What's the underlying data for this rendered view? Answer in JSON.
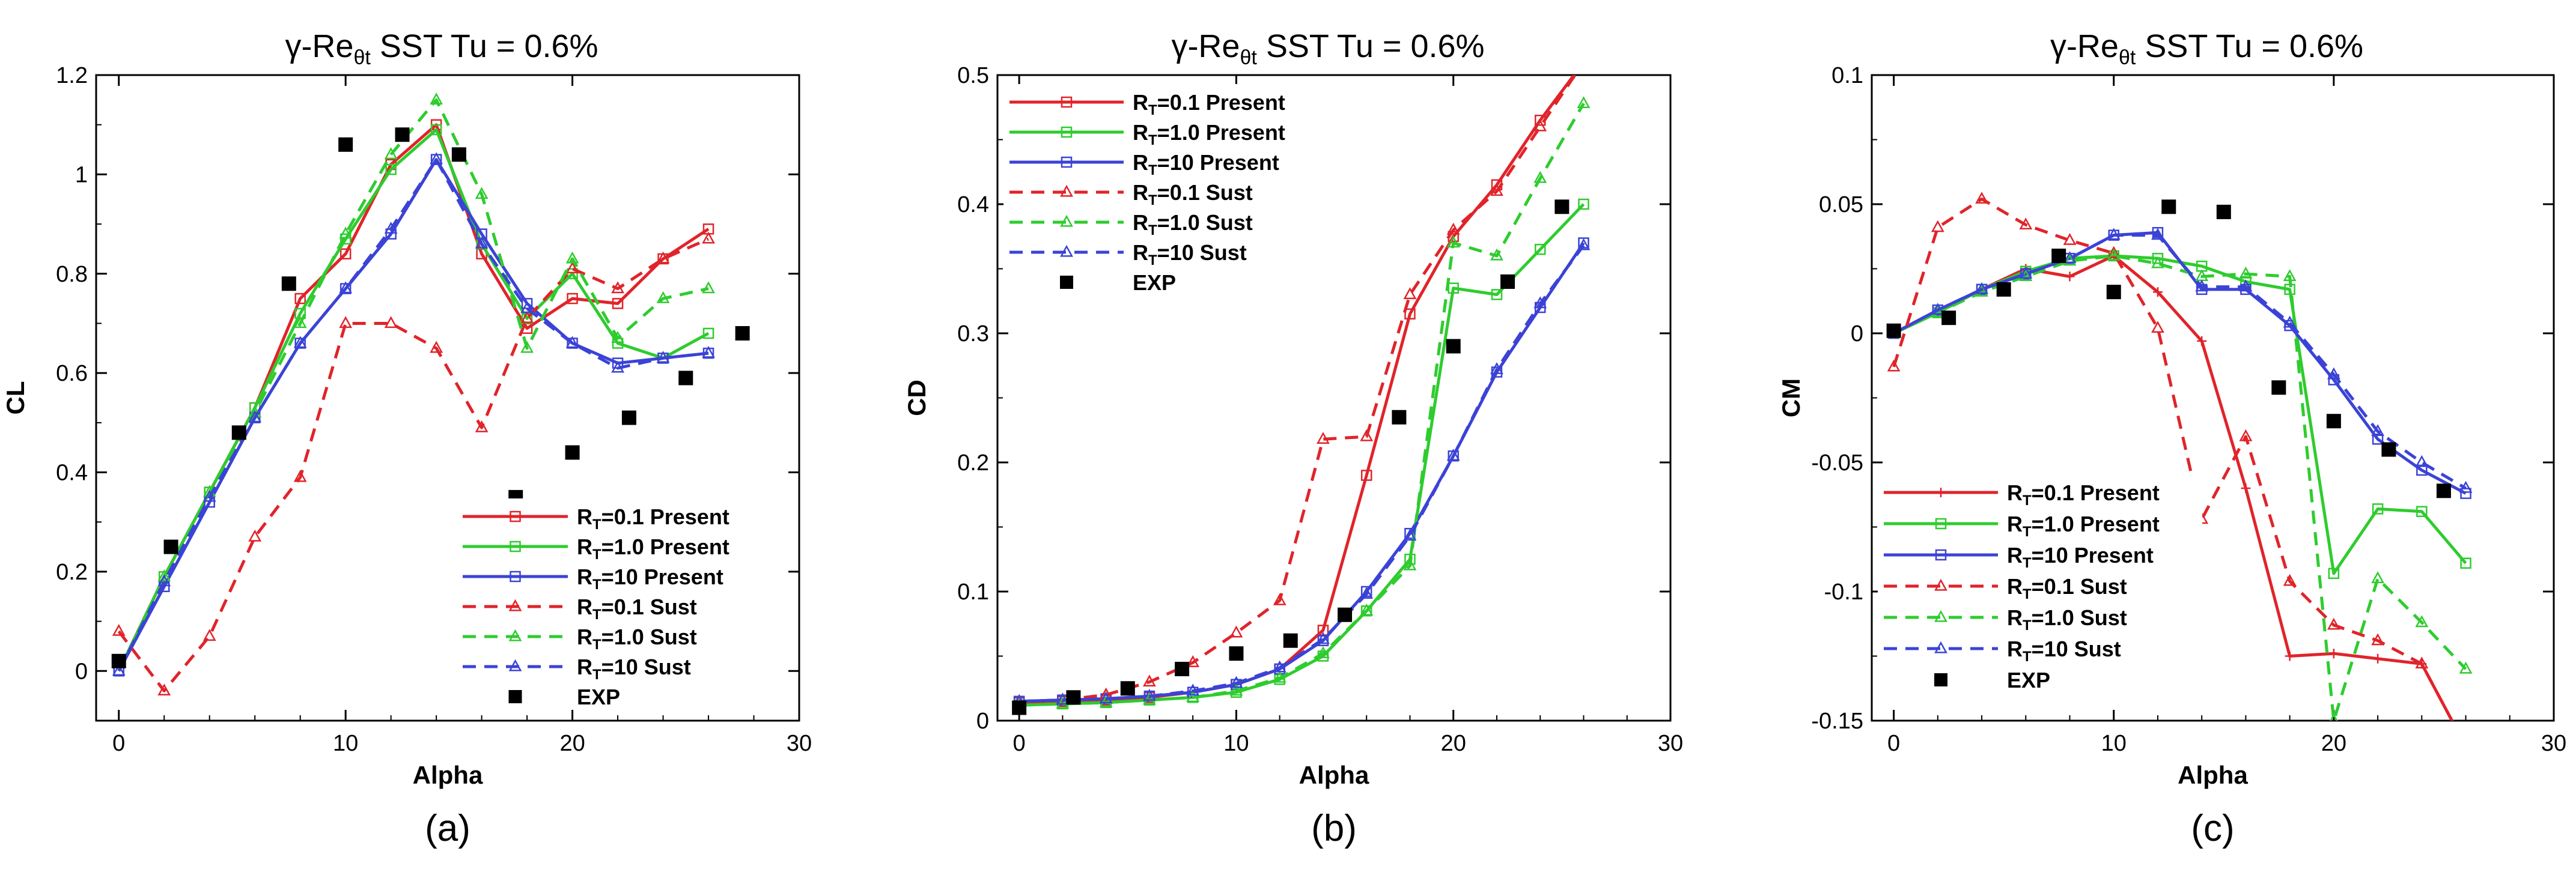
{
  "colors": {
    "red": "#e0242a",
    "green": "#2ecc2e",
    "blue": "#3b43d6",
    "exp": "#000000",
    "axis": "#000000"
  },
  "chart_data": [
    {
      "type": "line",
      "title_main": "γ-Re",
      "title_sub": "θt",
      "title_rest": " SST   Tu = 0.6%",
      "xlabel": "Alpha",
      "ylabel": "CL",
      "caption": "(a)",
      "xlim": [
        -1,
        30
      ],
      "ylim": [
        -0.1,
        1.2
      ],
      "xticks": [
        0,
        10,
        20,
        30
      ],
      "yticks": [
        0,
        0.2,
        0.4,
        0.6,
        0.8,
        1,
        1.2
      ],
      "ytick_labels": [
        "0",
        "0.2",
        "0.4",
        "0.6",
        "0.8",
        "1",
        "1.2"
      ],
      "legend_position": "bottom-right",
      "series": [
        {
          "name": "RT=0.1 Present",
          "label_r": "R",
          "label_sub": "T",
          "label_rest": "=0.1 Present",
          "color": "red",
          "dash": false,
          "marker": "square",
          "x": [
            0,
            2,
            4,
            6,
            8,
            10,
            12,
            14,
            16,
            18,
            20,
            22,
            24,
            26
          ],
          "y": [
            0.0,
            0.19,
            0.36,
            0.53,
            0.75,
            0.84,
            1.02,
            1.1,
            0.84,
            0.69,
            0.75,
            0.74,
            0.83,
            0.89
          ]
        },
        {
          "name": "RT=1.0 Present",
          "label_r": "R",
          "label_sub": "T",
          "label_rest": "=1.0 Present",
          "color": "green",
          "dash": false,
          "marker": "square",
          "x": [
            0,
            2,
            4,
            6,
            8,
            10,
            12,
            14,
            16,
            18,
            20,
            22,
            24,
            26
          ],
          "y": [
            0.0,
            0.19,
            0.36,
            0.53,
            0.72,
            0.87,
            1.01,
            1.09,
            0.86,
            0.71,
            0.8,
            0.66,
            0.63,
            0.68
          ]
        },
        {
          "name": "RT=10 Present",
          "label_r": "R",
          "label_sub": "T",
          "label_rest": "=10 Present",
          "color": "blue",
          "dash": false,
          "marker": "square",
          "x": [
            0,
            2,
            4,
            6,
            8,
            10,
            12,
            14,
            16,
            18,
            20,
            22,
            24,
            26
          ],
          "y": [
            0.0,
            0.17,
            0.34,
            0.51,
            0.66,
            0.77,
            0.88,
            1.03,
            0.88,
            0.74,
            0.66,
            0.62,
            0.63,
            0.64
          ]
        },
        {
          "name": "RT=0.1 Sust",
          "label_r": "R",
          "label_sub": "T",
          "label_rest": "=0.1 Sust",
          "color": "red",
          "dash": true,
          "marker": "triangle",
          "x": [
            0,
            2,
            4,
            6,
            8,
            10,
            12,
            14,
            16,
            18,
            20,
            22,
            24,
            26
          ],
          "y": [
            0.08,
            -0.04,
            0.07,
            0.27,
            0.39,
            0.7,
            0.7,
            0.65,
            0.49,
            0.71,
            0.81,
            0.77,
            0.83,
            0.87
          ]
        },
        {
          "name": "RT=1.0 Sust",
          "label_r": "R",
          "label_sub": "T",
          "label_rest": "=1.0 Sust",
          "color": "green",
          "dash": true,
          "marker": "triangle",
          "x": [
            0,
            2,
            4,
            6,
            8,
            10,
            12,
            14,
            16,
            18,
            20,
            22,
            24,
            26
          ],
          "y": [
            0.0,
            0.19,
            0.36,
            0.52,
            0.7,
            0.88,
            1.04,
            1.15,
            0.96,
            0.65,
            0.83,
            0.67,
            0.75,
            0.77
          ]
        },
        {
          "name": "RT=10 Sust",
          "label_r": "R",
          "label_sub": "T",
          "label_rest": "=10 Sust",
          "color": "blue",
          "dash": true,
          "marker": "triangle",
          "x": [
            0,
            2,
            4,
            6,
            8,
            10,
            12,
            14,
            16,
            18,
            20,
            22,
            24,
            26
          ],
          "y": [
            0.0,
            0.18,
            0.35,
            0.51,
            0.66,
            0.77,
            0.89,
            1.03,
            0.86,
            0.73,
            0.66,
            0.61,
            0.63,
            0.64
          ]
        }
      ],
      "exp": {
        "name": "EXP",
        "x": [
          0,
          2.3,
          5.3,
          7.5,
          10,
          12.5,
          15,
          17.5,
          20,
          22.5,
          25,
          27.5
        ],
        "y": [
          0.02,
          0.25,
          0.48,
          0.78,
          1.06,
          1.08,
          1.04,
          0.35,
          0.44,
          0.51,
          0.59,
          0.68
        ]
      }
    },
    {
      "type": "line",
      "title_main": "γ-Re",
      "title_sub": "θt",
      "title_rest": " SST   Tu = 0.6%",
      "xlabel": "Alpha",
      "ylabel": "CD",
      "caption": "(b)",
      "xlim": [
        -1,
        30
      ],
      "ylim": [
        0,
        0.5
      ],
      "xticks": [
        0,
        10,
        20,
        30
      ],
      "yticks": [
        0,
        0.1,
        0.2,
        0.3,
        0.4,
        0.5
      ],
      "ytick_labels": [
        "0",
        "0.1",
        "0.2",
        "0.3",
        "0.4",
        "0.5"
      ],
      "legend_position": "top-left",
      "series": [
        {
          "name": "RT=0.1 Present",
          "label_r": "R",
          "label_sub": "T",
          "label_rest": "=0.1 Present",
          "color": "red",
          "dash": false,
          "marker": "square",
          "x": [
            0,
            2,
            4,
            6,
            8,
            10,
            12,
            14,
            16,
            18,
            20,
            22,
            24,
            26
          ],
          "y": [
            0.014,
            0.015,
            0.016,
            0.018,
            0.022,
            0.028,
            0.04,
            0.07,
            0.19,
            0.315,
            0.375,
            0.415,
            0.465,
            0.51
          ]
        },
        {
          "name": "RT=1.0 Present",
          "label_r": "R",
          "label_sub": "T",
          "label_rest": "=1.0 Present",
          "color": "green",
          "dash": false,
          "marker": "square",
          "x": [
            0,
            2,
            4,
            6,
            8,
            10,
            12,
            14,
            16,
            18,
            20,
            22,
            24,
            26
          ],
          "y": [
            0.012,
            0.013,
            0.014,
            0.016,
            0.018,
            0.022,
            0.032,
            0.05,
            0.085,
            0.125,
            0.335,
            0.33,
            0.365,
            0.4
          ]
        },
        {
          "name": "RT=10 Present",
          "label_r": "R",
          "label_sub": "T",
          "label_rest": "=10 Present",
          "color": "blue",
          "dash": false,
          "marker": "square",
          "x": [
            0,
            2,
            4,
            6,
            8,
            10,
            12,
            14,
            16,
            18,
            20,
            22,
            24,
            26
          ],
          "y": [
            0.015,
            0.016,
            0.017,
            0.019,
            0.022,
            0.028,
            0.04,
            0.062,
            0.1,
            0.145,
            0.205,
            0.27,
            0.32,
            0.37
          ]
        },
        {
          "name": "RT=0.1 Sust",
          "label_r": "R",
          "label_sub": "T",
          "label_rest": "=0.1 Sust",
          "color": "red",
          "dash": true,
          "marker": "triangle",
          "x": [
            0,
            2,
            4,
            6,
            8,
            10,
            12,
            14,
            16,
            18,
            20,
            22,
            24,
            26
          ],
          "y": [
            0.014,
            0.016,
            0.02,
            0.03,
            0.045,
            0.068,
            0.093,
            0.218,
            0.22,
            0.33,
            0.38,
            0.41,
            0.46,
            0.51
          ]
        },
        {
          "name": "RT=1.0 Sust",
          "label_r": "R",
          "label_sub": "T",
          "label_rest": "=1.0 Sust",
          "color": "green",
          "dash": true,
          "marker": "triangle",
          "x": [
            0,
            2,
            4,
            6,
            8,
            10,
            12,
            14,
            16,
            18,
            20,
            22,
            24,
            26
          ],
          "y": [
            0.012,
            0.013,
            0.014,
            0.016,
            0.018,
            0.023,
            0.033,
            0.052,
            0.085,
            0.12,
            0.37,
            0.36,
            0.42,
            0.478
          ]
        },
        {
          "name": "RT=10 Sust",
          "label_r": "R",
          "label_sub": "T",
          "label_rest": "=10 Sust",
          "color": "blue",
          "dash": true,
          "marker": "triangle",
          "x": [
            0,
            2,
            4,
            6,
            8,
            10,
            12,
            14,
            16,
            18,
            20,
            22,
            24,
            26
          ],
          "y": [
            0.015,
            0.016,
            0.017,
            0.019,
            0.023,
            0.029,
            0.041,
            0.063,
            0.098,
            0.143,
            0.205,
            0.272,
            0.323,
            0.368
          ]
        }
      ],
      "exp": {
        "name": "EXP",
        "x": [
          0,
          2.5,
          5,
          7.5,
          10,
          12.5,
          15,
          17.5,
          20,
          22.5,
          25
        ],
        "y": [
          0.01,
          0.018,
          0.025,
          0.04,
          0.052,
          0.062,
          0.082,
          0.235,
          0.29,
          0.34,
          0.398
        ]
      }
    },
    {
      "type": "line",
      "title_main": "γ-Re",
      "title_sub": "θt",
      "title_rest": " SST   Tu = 0.6%",
      "xlabel": "Alpha",
      "ylabel": "CM",
      "caption": "(c)",
      "xlim": [
        -1,
        30
      ],
      "ylim": [
        -0.15,
        0.1
      ],
      "xticks": [
        0,
        10,
        20,
        30
      ],
      "yticks": [
        -0.15,
        -0.1,
        -0.05,
        0,
        0.05,
        0.1
      ],
      "ytick_labels": [
        "-0.15",
        "-0.1",
        "-0.05",
        "0",
        "0.05",
        "0.1"
      ],
      "legend_position": "bottom-left",
      "series": [
        {
          "name": "RT=0.1 Present",
          "label_r": "R",
          "label_sub": "T",
          "label_rest": "=0.1 Present",
          "color": "red",
          "dash": false,
          "marker": "plus",
          "x": [
            0,
            2,
            4,
            6,
            8,
            10,
            12,
            14,
            16,
            18,
            20,
            22,
            24,
            26
          ],
          "y": [
            0.0,
            0.008,
            0.017,
            0.025,
            0.022,
            0.03,
            0.016,
            -0.003,
            -0.06,
            -0.125,
            -0.124,
            -0.126,
            -0.128,
            -0.16
          ]
        },
        {
          "name": "RT=1.0 Present",
          "label_r": "R",
          "label_sub": "T",
          "label_rest": "=1.0 Present",
          "color": "green",
          "dash": false,
          "marker": "square",
          "x": [
            0,
            2,
            4,
            6,
            8,
            10,
            12,
            14,
            16,
            18,
            20,
            22,
            24,
            26
          ],
          "y": [
            0.0,
            0.008,
            0.017,
            0.024,
            0.029,
            0.03,
            0.029,
            0.026,
            0.02,
            0.017,
            -0.093,
            -0.068,
            -0.069,
            -0.089
          ]
        },
        {
          "name": "RT=10 Present",
          "label_r": "R",
          "label_sub": "T",
          "label_rest": "=10 Present",
          "color": "blue",
          "dash": false,
          "marker": "square",
          "x": [
            0,
            2,
            4,
            6,
            8,
            10,
            12,
            14,
            16,
            18,
            20,
            22,
            24,
            26
          ],
          "y": [
            0.0,
            0.009,
            0.017,
            0.023,
            0.029,
            0.038,
            0.039,
            0.017,
            0.017,
            0.003,
            -0.018,
            -0.041,
            -0.053,
            -0.062
          ]
        },
        {
          "name": "RT=0.1 Sust",
          "label_r": "R",
          "label_sub": "T",
          "label_rest": "=0.1 Sust",
          "color": "red",
          "dash": true,
          "marker": "triangle",
          "x": [
            0,
            2,
            4,
            6,
            8,
            10,
            12,
            14,
            16,
            18,
            20,
            22,
            24,
            26
          ],
          "y": [
            -0.013,
            0.041,
            0.052,
            0.042,
            0.036,
            0.031,
            0.002,
            -0.072,
            -0.04,
            -0.096,
            -0.113,
            -0.119,
            -0.128,
            -0.16
          ]
        },
        {
          "name": "RT=1.0 Sust",
          "label_r": "R",
          "label_sub": "T",
          "label_rest": "=1.0 Sust",
          "color": "green",
          "dash": true,
          "marker": "triangle",
          "x": [
            0,
            2,
            4,
            6,
            8,
            10,
            12,
            14,
            16,
            18,
            20,
            22,
            24,
            26
          ],
          "y": [
            0.0,
            0.008,
            0.016,
            0.022,
            0.028,
            0.03,
            0.027,
            0.022,
            0.023,
            0.022,
            -0.15,
            -0.095,
            -0.112,
            -0.13
          ]
        },
        {
          "name": "RT=10 Sust",
          "label_r": "R",
          "label_sub": "T",
          "label_rest": "=10 Sust",
          "color": "blue",
          "dash": true,
          "marker": "triangle",
          "x": [
            0,
            2,
            4,
            6,
            8,
            10,
            12,
            14,
            16,
            18,
            20,
            22,
            24,
            26
          ],
          "y": [
            0.0,
            0.009,
            0.017,
            0.023,
            0.029,
            0.038,
            0.038,
            0.018,
            0.018,
            0.004,
            -0.016,
            -0.038,
            -0.05,
            -0.06
          ]
        }
      ],
      "exp": {
        "name": "EXP",
        "x": [
          0,
          2.5,
          5,
          7.5,
          10,
          12.5,
          15,
          17.5,
          20,
          22.5,
          25
        ],
        "y": [
          0.001,
          0.006,
          0.017,
          0.03,
          0.016,
          0.049,
          0.047,
          -0.021,
          -0.034,
          -0.045,
          -0.061
        ]
      }
    }
  ]
}
